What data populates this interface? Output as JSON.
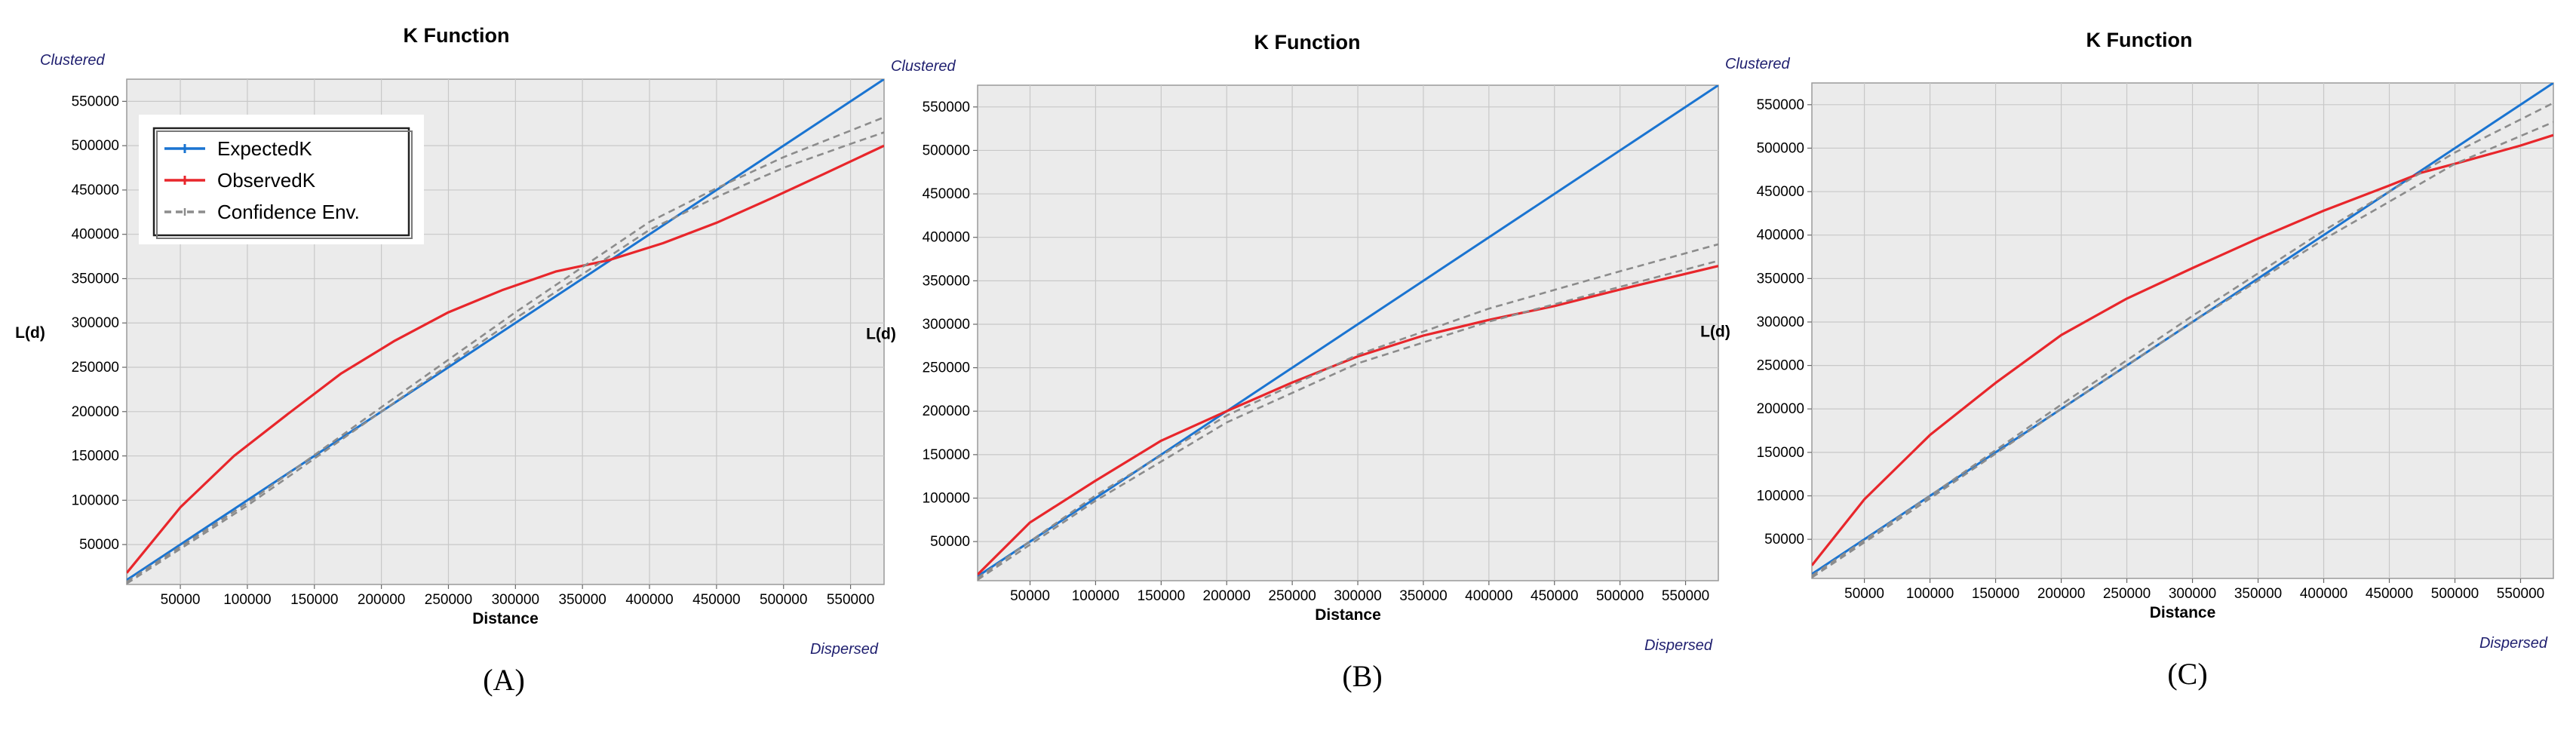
{
  "colors": {
    "expected": "#1a74d1",
    "observed": "#e8262b",
    "confidence": "#8c8c8c",
    "plot_bg": "#ebebeb",
    "grid": "#c8c8c8",
    "corner_text": "#1f1f6f"
  },
  "chart_data": [
    {
      "panel": "A",
      "caption": "(A)",
      "type": "line",
      "title": "K Function",
      "xlabel": "Distance",
      "ylabel": "L(d)",
      "top_left_note": "Clustered",
      "bottom_right_note": "Dispersed",
      "xlim": [
        10000,
        575000
      ],
      "ylim": [
        5000,
        575000
      ],
      "xticks": [
        50000,
        100000,
        150000,
        200000,
        250000,
        300000,
        350000,
        400000,
        450000,
        500000,
        550000
      ],
      "yticks": [
        50000,
        100000,
        150000,
        200000,
        250000,
        300000,
        350000,
        400000,
        450000,
        500000,
        550000
      ],
      "grid": true,
      "legend": {
        "position": "top-left",
        "entries": [
          {
            "key": "expected",
            "label": "ExpectedK"
          },
          {
            "key": "observed",
            "label": "ObservedK"
          },
          {
            "key": "confidence",
            "label": "Confidence Env."
          }
        ]
      },
      "series": [
        {
          "key": "expected",
          "name": "ExpectedK",
          "x": [
            10000,
            575000
          ],
          "y": [
            10000,
            575000
          ]
        },
        {
          "key": "observed",
          "name": "ObservedK",
          "x": [
            10000,
            50000,
            90000,
            130000,
            170000,
            210000,
            250000,
            290000,
            330000,
            370000,
            410000,
            450000,
            490000,
            530000,
            575000
          ],
          "y": [
            18000,
            92000,
            150000,
            197000,
            243000,
            280000,
            312000,
            337000,
            358000,
            371000,
            390000,
            413000,
            440000,
            468000,
            500000
          ]
        },
        {
          "key": "confidence_upper",
          "name": "Confidence Env.",
          "x": [
            10000,
            100000,
            200000,
            300000,
            400000,
            450000,
            500000,
            550000,
            575000
          ],
          "y": [
            8000,
            97000,
            205000,
            312000,
            414000,
            452000,
            487000,
            517000,
            532000
          ]
        },
        {
          "key": "confidence_lower",
          "name": "Confidence Env.",
          "x": [
            10000,
            100000,
            200000,
            300000,
            400000,
            450000,
            500000,
            550000,
            575000
          ],
          "y": [
            6000,
            94000,
            200000,
            305000,
            405000,
            442000,
            475000,
            502000,
            515000
          ]
        }
      ]
    },
    {
      "panel": "B",
      "caption": "(B)",
      "type": "line",
      "title": "K Function",
      "xlabel": "Distance",
      "ylabel": "L(d)",
      "top_left_note": "Clustered",
      "bottom_right_note": "Dispersed",
      "xlim": [
        10000,
        575000
      ],
      "ylim": [
        5000,
        575000
      ],
      "xticks": [
        50000,
        100000,
        150000,
        200000,
        250000,
        300000,
        350000,
        400000,
        450000,
        500000,
        550000
      ],
      "yticks": [
        50000,
        100000,
        150000,
        200000,
        250000,
        300000,
        350000,
        400000,
        450000,
        500000,
        550000
      ],
      "grid": true,
      "series": [
        {
          "key": "expected",
          "name": "ExpectedK",
          "x": [
            10000,
            575000
          ],
          "y": [
            10000,
            575000
          ]
        },
        {
          "key": "observed",
          "name": "ObservedK",
          "x": [
            10000,
            50000,
            100000,
            150000,
            200000,
            250000,
            300000,
            350000,
            400000,
            450000,
            500000,
            575000
          ],
          "y": [
            12000,
            72000,
            120000,
            166000,
            200000,
            233000,
            263000,
            287000,
            305000,
            321000,
            340000,
            367000
          ]
        },
        {
          "key": "confidence_upper",
          "name": "Confidence Env.",
          "x": [
            10000,
            100000,
            200000,
            300000,
            400000,
            500000,
            575000
          ],
          "y": [
            8000,
            103000,
            195000,
            265000,
            318000,
            361000,
            392000
          ]
        },
        {
          "key": "confidence_lower",
          "name": "Confidence Env.",
          "x": [
            10000,
            100000,
            200000,
            300000,
            400000,
            500000,
            575000
          ],
          "y": [
            6000,
            97000,
            187000,
            255000,
            303000,
            343000,
            373000
          ]
        }
      ]
    },
    {
      "panel": "C",
      "caption": "(C)",
      "type": "line",
      "title": "K Function",
      "xlabel": "Distance",
      "ylabel": "L(d)",
      "top_left_note": "Clustered",
      "bottom_right_note": "Dispersed",
      "xlim": [
        10000,
        575000
      ],
      "ylim": [
        5000,
        575000
      ],
      "xticks": [
        50000,
        100000,
        150000,
        200000,
        250000,
        300000,
        350000,
        400000,
        450000,
        500000,
        550000
      ],
      "yticks": [
        50000,
        100000,
        150000,
        200000,
        250000,
        300000,
        350000,
        400000,
        450000,
        500000,
        550000
      ],
      "grid": true,
      "series": [
        {
          "key": "expected",
          "name": "ExpectedK",
          "x": [
            10000,
            575000
          ],
          "y": [
            10000,
            575000
          ]
        },
        {
          "key": "observed",
          "name": "ObservedK",
          "x": [
            10000,
            50000,
            100000,
            150000,
            200000,
            250000,
            300000,
            350000,
            400000,
            450000,
            475000,
            500000,
            550000,
            575000
          ],
          "y": [
            20000,
            96000,
            170000,
            230000,
            285000,
            327000,
            362000,
            396000,
            428000,
            457000,
            472000,
            482000,
            503000,
            515000
          ]
        },
        {
          "key": "confidence_upper",
          "name": "Confidence Env.",
          "x": [
            10000,
            100000,
            200000,
            300000,
            400000,
            500000,
            575000
          ],
          "y": [
            8000,
            100000,
            205000,
            307000,
            405000,
            495000,
            552000
          ]
        },
        {
          "key": "confidence_lower",
          "name": "Confidence Env.",
          "x": [
            10000,
            100000,
            200000,
            300000,
            400000,
            500000,
            575000
          ],
          "y": [
            6000,
            97000,
            200000,
            300000,
            395000,
            482000,
            530000
          ]
        }
      ]
    }
  ]
}
